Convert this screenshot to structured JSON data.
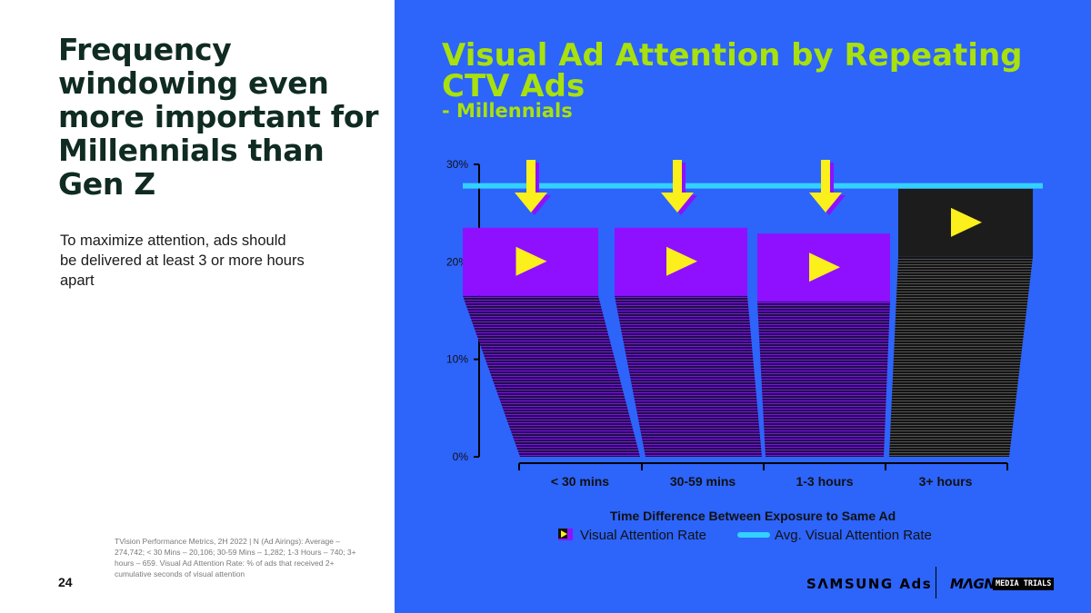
{
  "slide": {
    "headline": "Frequency windowing even more important for Millennials than Gen Z",
    "subtext": "To maximize attention, ads should be delivered at least 3 or more hours apart",
    "page_number": "24",
    "source_note": "TVision Performance Metrics, 2H 2022 | N (Ad Airings): Average – 274,742; < 30 Mins – 20,106; 30-59 Mins – 1,282; 1-3 Hours – 740; 3+ hours – 659. Visual Ad Attention Rate: % of ads that received 2+ cumulative seconds of visual attention"
  },
  "logos": {
    "samsung": "SΛMSUNG Ads",
    "magna": "MΛGNA",
    "media_trials": "MEDIA TRIALS"
  },
  "colors": {
    "panel_background": "#2d64fa",
    "title": "#a8e10c",
    "bar_purple": "#8f10ff",
    "bar_black": "#1c1c1c",
    "avg_line": "#33d1ff",
    "arrow": "#fbef1c",
    "play_icon": "#fbef1c",
    "axis": "#000000"
  },
  "chart_data": {
    "type": "bar",
    "title": "Visual Ad Attention by Repeating CTV Ads",
    "subtitle": "- Millennials",
    "categories": [
      "< 30 mins",
      "30-59 mins",
      "1-3 hours",
      "3+ hours"
    ],
    "series": [
      {
        "name": "Visual Attention Rate",
        "values": [
          23.5,
          23.5,
          22.9,
          27.5
        ]
      },
      {
        "name": "Avg. Visual Attention Rate",
        "values": [
          27.8,
          27.8,
          27.8,
          27.8
        ]
      }
    ],
    "highlighted_category": "3+ hours",
    "arrows_above": [
      "< 30 mins",
      "30-59 mins",
      "1-3 hours"
    ],
    "xlabel": "Time Difference Between Exposure to Same Ad",
    "ylabel": "",
    "ylim": [
      0,
      30
    ],
    "yticks": [
      "0%",
      "10%",
      "20%",
      "30%"
    ],
    "grid": false,
    "legend_position": "bottom"
  }
}
